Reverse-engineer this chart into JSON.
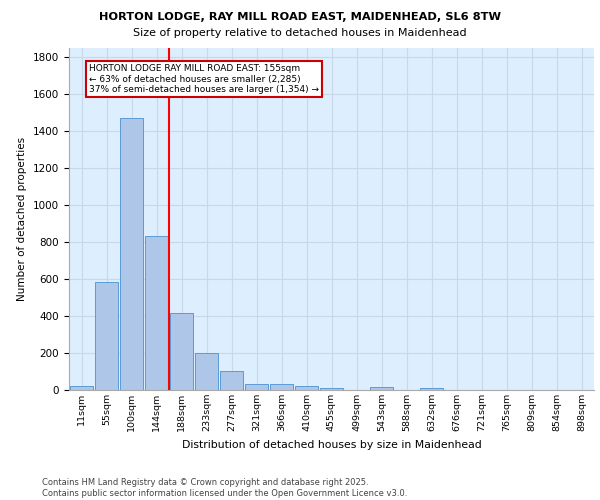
{
  "title1": "HORTON LODGE, RAY MILL ROAD EAST, MAIDENHEAD, SL6 8TW",
  "title2": "Size of property relative to detached houses in Maidenhead",
  "xlabel": "Distribution of detached houses by size in Maidenhead",
  "ylabel": "Number of detached properties",
  "categories": [
    "11sqm",
    "55sqm",
    "100sqm",
    "144sqm",
    "188sqm",
    "233sqm",
    "277sqm",
    "321sqm",
    "366sqm",
    "410sqm",
    "455sqm",
    "499sqm",
    "543sqm",
    "588sqm",
    "632sqm",
    "676sqm",
    "721sqm",
    "765sqm",
    "809sqm",
    "854sqm",
    "898sqm"
  ],
  "values": [
    20,
    585,
    1470,
    830,
    415,
    200,
    100,
    35,
    32,
    20,
    10,
    0,
    15,
    0,
    10,
    0,
    0,
    0,
    0,
    0,
    0
  ],
  "bar_color": "#aec6e8",
  "bar_edge_color": "#5b9bd5",
  "annotation_text": "HORTON LODGE RAY MILL ROAD EAST: 155sqm\n← 63% of detached houses are smaller (2,285)\n37% of semi-detached houses are larger (1,354) →",
  "annotation_box_color": "#ffffff",
  "annotation_box_edge_color": "#cc0000",
  "grid_color": "#c8d8e8",
  "background_color": "#ddeeff",
  "ylim": [
    0,
    1850
  ],
  "yticks": [
    0,
    200,
    400,
    600,
    800,
    1000,
    1200,
    1400,
    1600,
    1800
  ],
  "footer1": "Contains HM Land Registry data © Crown copyright and database right 2025.",
  "footer2": "Contains public sector information licensed under the Open Government Licence v3.0."
}
